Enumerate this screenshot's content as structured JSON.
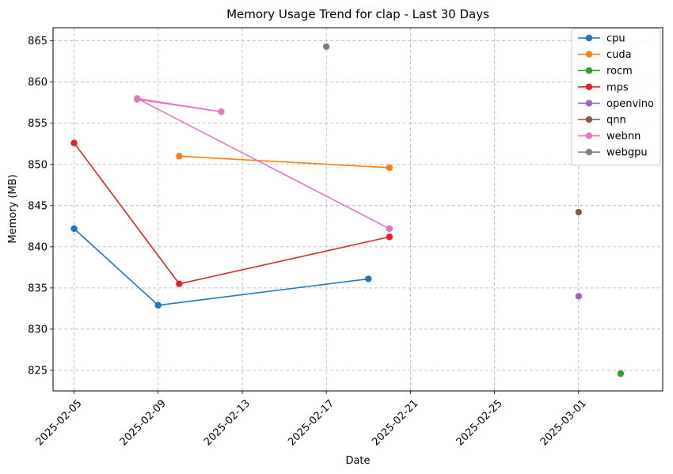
{
  "chart_data": {
    "type": "line",
    "title": "Memory Usage Trend for clap - Last 30 Days",
    "xlabel": "Date",
    "ylabel": "Memory (MB)",
    "x_type": "date",
    "xlim": [
      "2025-02-04",
      "2025-03-05"
    ],
    "ylim": [
      822.5,
      866.6
    ],
    "x_ticks": [
      "2025-02-05",
      "2025-02-09",
      "2025-02-13",
      "2025-02-17",
      "2025-02-21",
      "2025-02-25",
      "2025-03-01"
    ],
    "y_ticks": [
      825,
      830,
      835,
      840,
      845,
      850,
      855,
      860,
      865
    ],
    "grid": true,
    "legend_position": "top-right",
    "series": [
      {
        "name": "cpu",
        "color": "#1f77b4",
        "points": [
          [
            "2025-02-05",
            842.2
          ],
          [
            "2025-02-09",
            832.9
          ],
          [
            "2025-02-19",
            836.1
          ]
        ]
      },
      {
        "name": "cuda",
        "color": "#ff7f0e",
        "points": [
          [
            "2025-02-10",
            851.0
          ],
          [
            "2025-02-20",
            849.6
          ]
        ]
      },
      {
        "name": "rocm",
        "color": "#2ca02c",
        "points": [
          [
            "2025-03-03",
            824.6
          ]
        ]
      },
      {
        "name": "mps",
        "color": "#d62728",
        "points": [
          [
            "2025-02-05",
            852.6
          ],
          [
            "2025-02-10",
            835.5
          ],
          [
            "2025-02-20",
            841.2
          ]
        ]
      },
      {
        "name": "openvino",
        "color": "#9467bd",
        "points": [
          [
            "2025-03-01",
            834.0
          ]
        ]
      },
      {
        "name": "qnn",
        "color": "#8c564b",
        "points": [
          [
            "2025-03-01",
            844.2
          ]
        ]
      },
      {
        "name": "webnn",
        "color": "#e377c2",
        "points": [
          [
            "2025-02-08",
            857.9
          ],
          [
            "2025-02-12",
            856.4
          ],
          [
            "2025-02-08",
            858.0
          ],
          [
            "2025-02-20",
            842.2
          ]
        ]
      },
      {
        "name": "webgpu",
        "color": "#7f7f7f",
        "points": [
          [
            "2025-02-17",
            864.3
          ]
        ]
      }
    ]
  }
}
